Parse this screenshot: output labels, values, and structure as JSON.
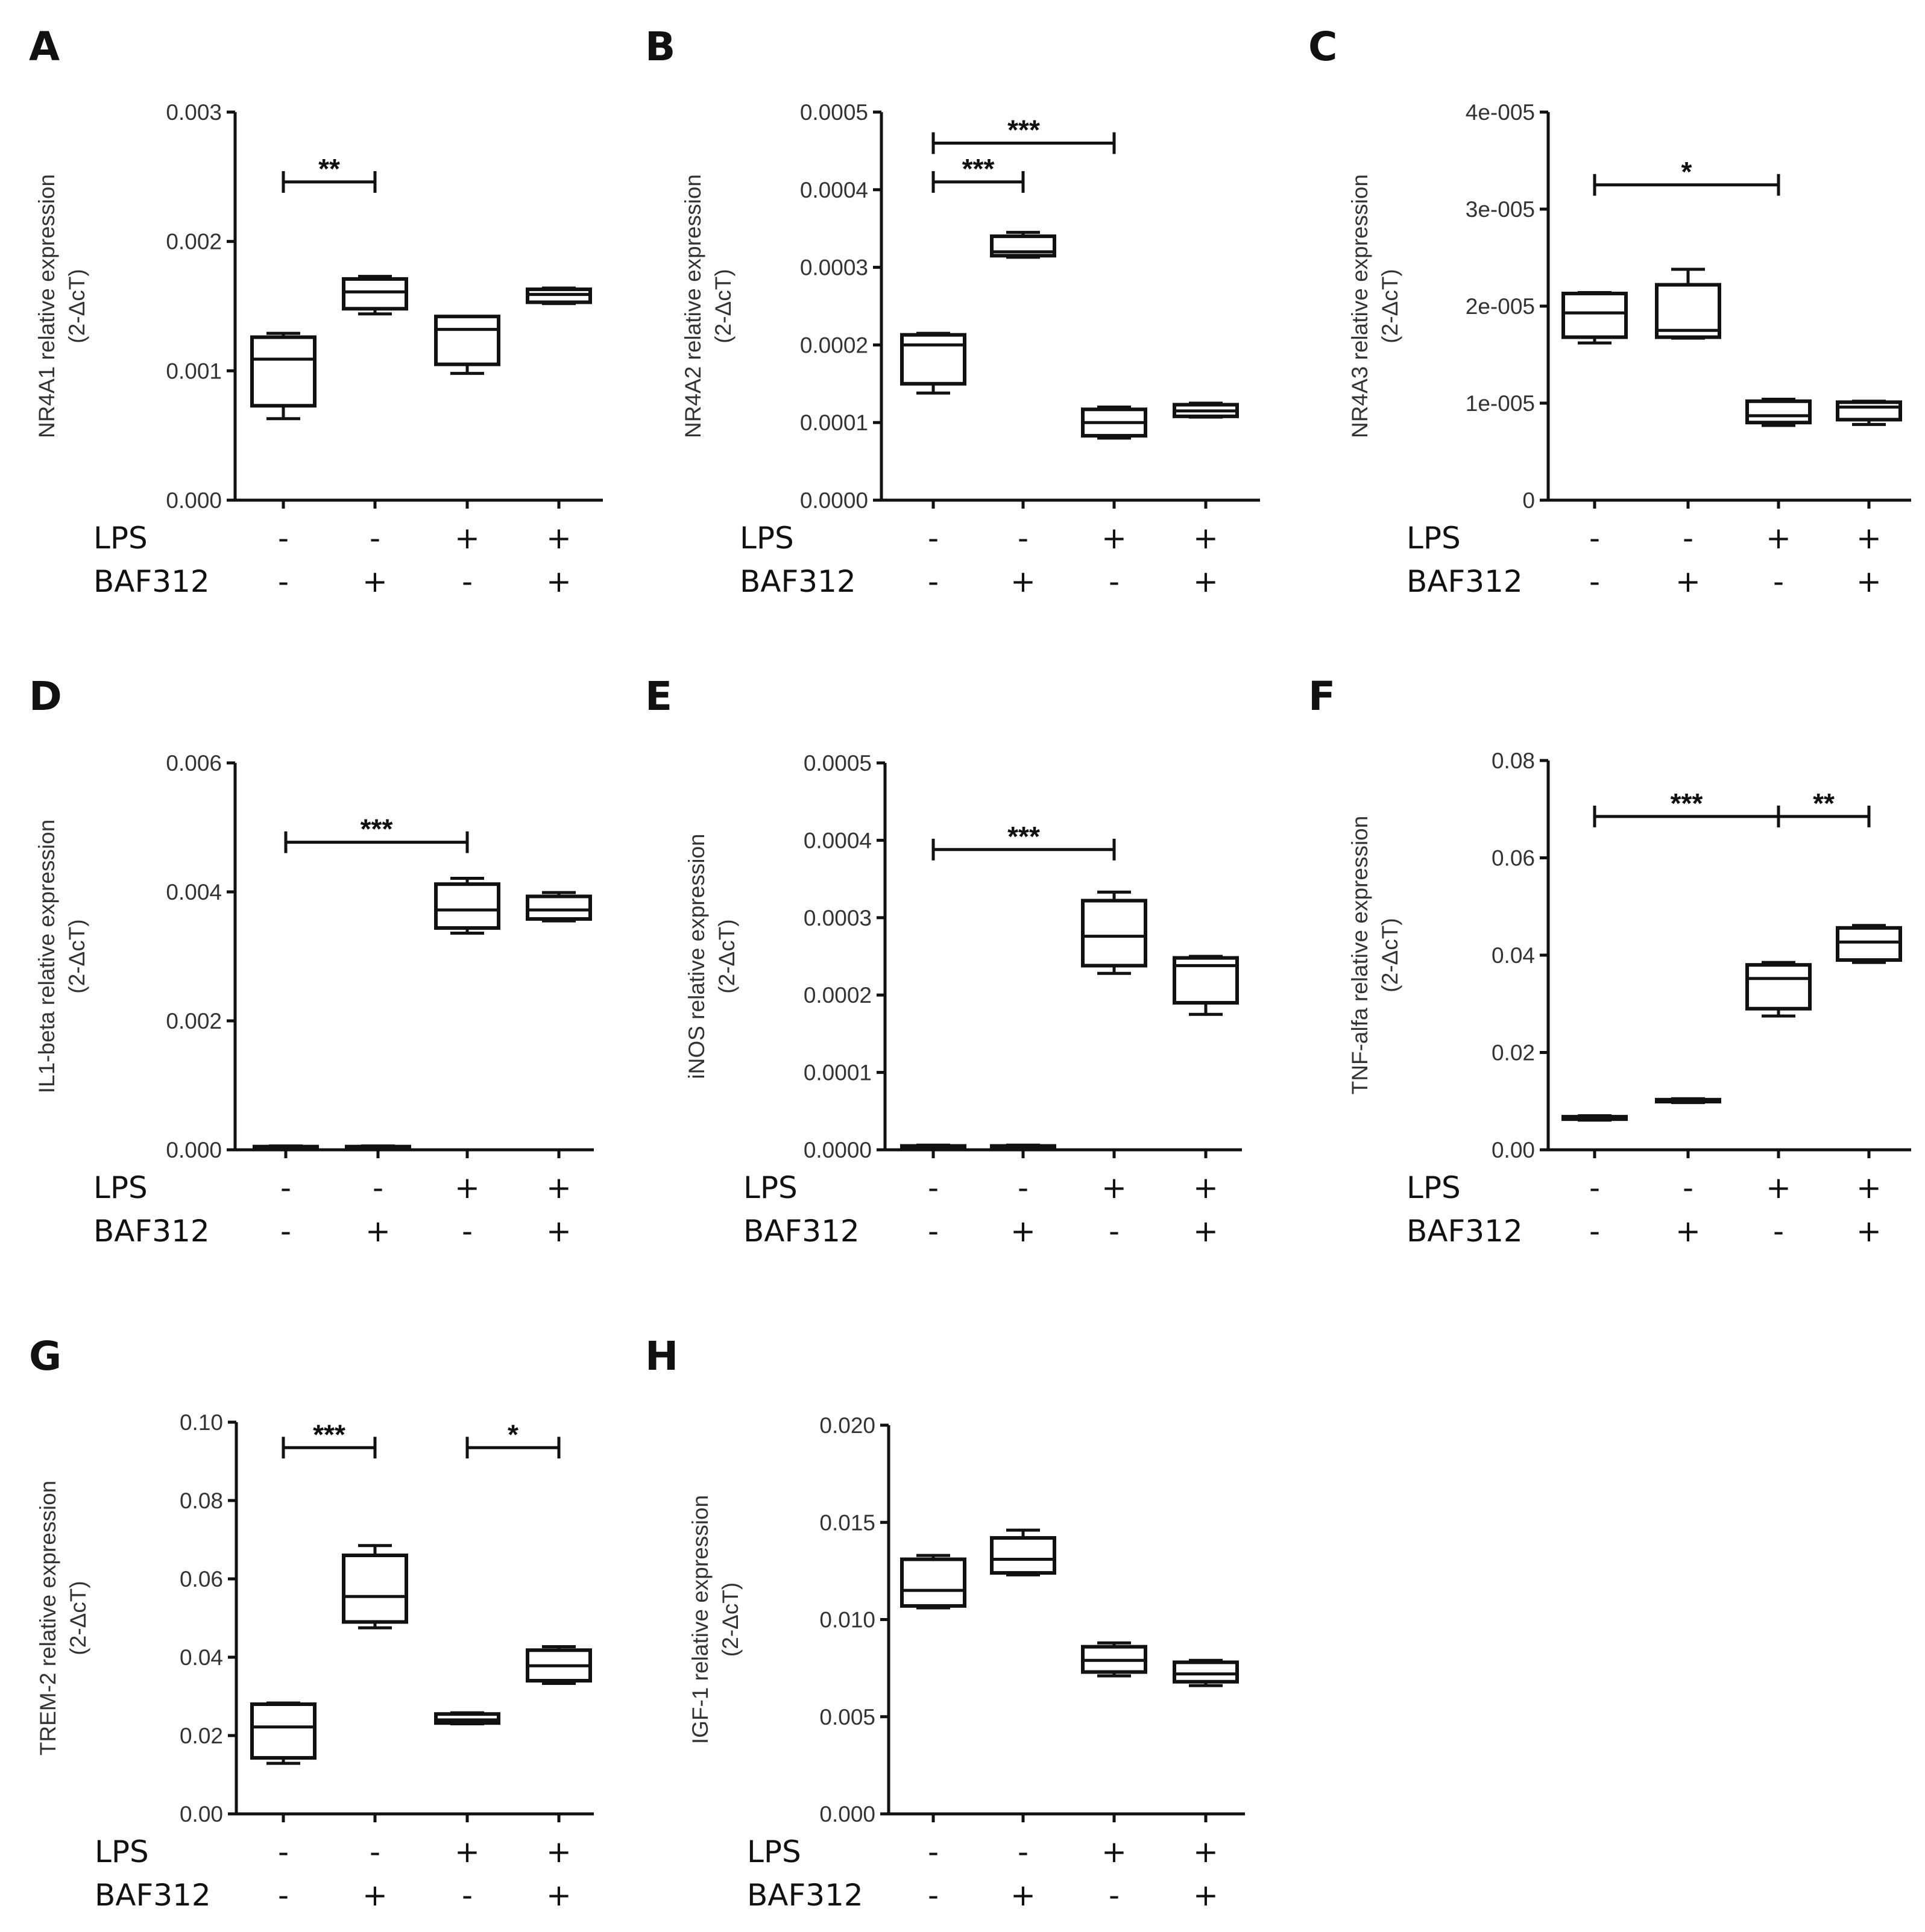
{
  "figure": {
    "chart_data": [
      {
        "panel": "A",
        "type": "box",
        "ylabel": "NR4A1 relative expression",
        "ylabel_unit": "(2-ΔcT)",
        "ylim": [
          0,
          0.003
        ],
        "yticks": [
          {
            "v": 0,
            "t": "0.000"
          },
          {
            "v": 0.001,
            "t": "0.001"
          },
          {
            "v": 0.002,
            "t": "0.002"
          },
          {
            "v": 0.003,
            "t": "0.003"
          }
        ],
        "conditions": {
          "row1_label": "LPS",
          "row2_label": "BAF312",
          "row1": [
            "-",
            "-",
            "+",
            "+"
          ],
          "row2": [
            "-",
            "+",
            "-",
            "+"
          ]
        },
        "boxes": [
          {
            "min": 0.00063,
            "q1": 0.00073,
            "median": 0.00109,
            "q3": 0.00126,
            "max": 0.00129
          },
          {
            "min": 0.00144,
            "q1": 0.00148,
            "median": 0.00161,
            "q3": 0.00171,
            "max": 0.00173
          },
          {
            "min": 0.00098,
            "q1": 0.00105,
            "median": 0.00132,
            "q3": 0.00142,
            "max": 0.00142
          },
          {
            "min": 0.00152,
            "q1": 0.00153,
            "median": 0.00159,
            "q3": 0.00163,
            "max": 0.00164
          }
        ],
        "significance": [
          {
            "from": 0,
            "to": 1,
            "y": 0.00246,
            "label": "**"
          }
        ]
      },
      {
        "panel": "B",
        "type": "box",
        "ylabel": "NR4A2 relative expression",
        "ylabel_unit": "(2-ΔcT)",
        "ylim": [
          0,
          0.0005
        ],
        "yticks": [
          {
            "v": 0,
            "t": "0.0000"
          },
          {
            "v": 0.0001,
            "t": "0.0001"
          },
          {
            "v": 0.0002,
            "t": "0.0002"
          },
          {
            "v": 0.0003,
            "t": "0.0003"
          },
          {
            "v": 0.0004,
            "t": "0.0004"
          },
          {
            "v": 0.0005,
            "t": "0.0005"
          }
        ],
        "conditions": {
          "row1_label": "LPS",
          "row2_label": "BAF312",
          "row1": [
            "-",
            "-",
            "+",
            "+"
          ],
          "row2": [
            "-",
            "+",
            "-",
            "+"
          ]
        },
        "boxes": [
          {
            "min": 0.000138,
            "q1": 0.00015,
            "median": 0.0002,
            "q3": 0.000213,
            "max": 0.000215
          },
          {
            "min": 0.000313,
            "q1": 0.000315,
            "median": 0.00032,
            "q3": 0.00034,
            "max": 0.000345
          },
          {
            "min": 8e-05,
            "q1": 8.3e-05,
            "median": 0.0001,
            "q3": 0.000117,
            "max": 0.00012
          },
          {
            "min": 0.000107,
            "q1": 0.000108,
            "median": 0.000115,
            "q3": 0.000123,
            "max": 0.000125
          }
        ],
        "significance": [
          {
            "from": 0,
            "to": 1,
            "y": 0.00041,
            "label": "***"
          },
          {
            "from": 0,
            "to": 2,
            "y": 0.00046,
            "label": "***"
          }
        ]
      },
      {
        "panel": "C",
        "type": "box",
        "ylabel": "NR4A3 relative expression",
        "ylabel_unit": "(2-ΔcT)",
        "ylim": [
          0,
          4e-05
        ],
        "yticks": [
          {
            "v": 0,
            "t": "0"
          },
          {
            "v": 1e-05,
            "t": "1e-005"
          },
          {
            "v": 2e-05,
            "t": "2e-005"
          },
          {
            "v": 3e-05,
            "t": "3e-005"
          },
          {
            "v": 4e-05,
            "t": "4e-005"
          }
        ],
        "conditions": {
          "row1_label": "LPS",
          "row2_label": "BAF312",
          "row1": [
            "-",
            "-",
            "+",
            "+"
          ],
          "row2": [
            "-",
            "+",
            "-",
            "+"
          ]
        },
        "boxes": [
          {
            "min": 1.62e-05,
            "q1": 1.68e-05,
            "median": 1.93e-05,
            "q3": 2.13e-05,
            "max": 2.14e-05
          },
          {
            "min": 1.67e-05,
            "q1": 1.68e-05,
            "median": 1.75e-05,
            "q3": 2.22e-05,
            "max": 2.38e-05
          },
          {
            "min": 7.7e-06,
            "q1": 8e-06,
            "median": 8.7e-06,
            "q3": 1.02e-05,
            "max": 1.04e-05
          },
          {
            "min": 7.8e-06,
            "q1": 8.3e-06,
            "median": 9.6e-06,
            "q3": 1.01e-05,
            "max": 1.02e-05
          }
        ],
        "significance": [
          {
            "from": 0,
            "to": 2,
            "y": 3.25e-05,
            "label": "*"
          }
        ]
      },
      {
        "panel": "D",
        "type": "box",
        "ylabel": "IL1-beta relative expression",
        "ylabel_unit": "(2-ΔcT)",
        "ylim": [
          0,
          0.006
        ],
        "yticks": [
          {
            "v": 0,
            "t": "0.000"
          },
          {
            "v": 0.002,
            "t": "0.002"
          },
          {
            "v": 0.004,
            "t": "0.004"
          },
          {
            "v": 0.006,
            "t": "0.006"
          }
        ],
        "conditions": {
          "row1_label": "LPS",
          "row2_label": "BAF312",
          "row1": [
            "-",
            "-",
            "+",
            "+"
          ],
          "row2": [
            "-",
            "+",
            "-",
            "+"
          ]
        },
        "boxes": [
          {
            "min": 2e-05,
            "q1": 3e-05,
            "median": 4e-05,
            "q3": 5e-05,
            "max": 6e-05
          },
          {
            "min": 2e-05,
            "q1": 3e-05,
            "median": 4e-05,
            "q3": 5e-05,
            "max": 6e-05
          },
          {
            "min": 0.00336,
            "q1": 0.00344,
            "median": 0.00372,
            "q3": 0.00412,
            "max": 0.00421
          },
          {
            "min": 0.00355,
            "q1": 0.00358,
            "median": 0.00372,
            "q3": 0.00393,
            "max": 0.00399
          }
        ],
        "significance": [
          {
            "from": 0,
            "to": 2,
            "y": 0.00477,
            "label": "***"
          }
        ]
      },
      {
        "panel": "E",
        "type": "box",
        "ylabel": "iNOS relative expression",
        "ylabel_unit": "(2-ΔcT)",
        "ylim": [
          0,
          0.0005
        ],
        "yticks": [
          {
            "v": 0,
            "t": "0.0000"
          },
          {
            "v": 0.0001,
            "t": "0.0001"
          },
          {
            "v": 0.0002,
            "t": "0.0002"
          },
          {
            "v": 0.0003,
            "t": "0.0003"
          },
          {
            "v": 0.0004,
            "t": "0.0004"
          },
          {
            "v": 0.0005,
            "t": "0.0005"
          }
        ],
        "conditions": {
          "row1_label": "LPS",
          "row2_label": "BAF312",
          "row1": [
            "-",
            "-",
            "+",
            "+"
          ],
          "row2": [
            "-",
            "+",
            "-",
            "+"
          ]
        },
        "boxes": [
          {
            "min": 2e-06,
            "q1": 3e-06,
            "median": 4e-06,
            "q3": 5e-06,
            "max": 6e-06
          },
          {
            "min": 2e-06,
            "q1": 3e-06,
            "median": 4e-06,
            "q3": 5e-06,
            "max": 6e-06
          },
          {
            "min": 0.000228,
            "q1": 0.000238,
            "median": 0.000276,
            "q3": 0.000322,
            "max": 0.000333
          },
          {
            "min": 0.000175,
            "q1": 0.00019,
            "median": 0.000238,
            "q3": 0.000248,
            "max": 0.00025
          }
        ],
        "significance": [
          {
            "from": 0,
            "to": 2,
            "y": 0.000388,
            "label": "***"
          }
        ]
      },
      {
        "panel": "F",
        "type": "box",
        "ylabel": "TNF-alfa relative expression",
        "ylabel_unit": "(2-ΔcT)",
        "ylim": [
          0,
          0.08
        ],
        "yticks": [
          {
            "v": 0,
            "t": "0.00"
          },
          {
            "v": 0.02,
            "t": "0.02"
          },
          {
            "v": 0.04,
            "t": "0.04"
          },
          {
            "v": 0.06,
            "t": "0.06"
          },
          {
            "v": 0.08,
            "t": "0.08"
          }
        ],
        "conditions": {
          "row1_label": "LPS",
          "row2_label": "BAF312",
          "row1": [
            "-",
            "-",
            "+",
            "+"
          ],
          "row2": [
            "-",
            "+",
            "-",
            "+"
          ]
        },
        "boxes": [
          {
            "min": 0.0061,
            "q1": 0.0063,
            "median": 0.0066,
            "q3": 0.0068,
            "max": 0.007
          },
          {
            "min": 0.0097,
            "q1": 0.0099,
            "median": 0.0101,
            "q3": 0.0103,
            "max": 0.0105
          },
          {
            "min": 0.0275,
            "q1": 0.029,
            "median": 0.0352,
            "q3": 0.038,
            "max": 0.0385
          },
          {
            "min": 0.0385,
            "q1": 0.039,
            "median": 0.0427,
            "q3": 0.0456,
            "max": 0.0461
          }
        ],
        "significance": [
          {
            "from": 0,
            "to": 2,
            "y": 0.0685,
            "label": "***"
          },
          {
            "from": 2,
            "to": 3,
            "y": 0.0685,
            "label": "**"
          }
        ]
      },
      {
        "panel": "G",
        "type": "box",
        "ylabel": "TREM-2 relative expression",
        "ylabel_unit": "(2-ΔcT)",
        "ylim": [
          0,
          0.1
        ],
        "yticks": [
          {
            "v": 0,
            "t": "0.00"
          },
          {
            "v": 0.02,
            "t": "0.02"
          },
          {
            "v": 0.04,
            "t": "0.04"
          },
          {
            "v": 0.06,
            "t": "0.06"
          },
          {
            "v": 0.08,
            "t": "0.08"
          },
          {
            "v": 0.1,
            "t": "0.10"
          }
        ],
        "conditions": {
          "row1_label": "LPS",
          "row2_label": "BAF312",
          "row1": [
            "-",
            "-",
            "+",
            "+"
          ],
          "row2": [
            "-",
            "+",
            "-",
            "+"
          ]
        },
        "boxes": [
          {
            "min": 0.0129,
            "q1": 0.0143,
            "median": 0.0222,
            "q3": 0.028,
            "max": 0.0283
          },
          {
            "min": 0.0475,
            "q1": 0.049,
            "median": 0.0555,
            "q3": 0.066,
            "max": 0.0685
          },
          {
            "min": 0.023,
            "q1": 0.0232,
            "median": 0.024,
            "q3": 0.0255,
            "max": 0.0258
          },
          {
            "min": 0.0333,
            "q1": 0.034,
            "median": 0.0378,
            "q3": 0.0418,
            "max": 0.0427
          }
        ],
        "significance": [
          {
            "from": 0,
            "to": 1,
            "y": 0.0935,
            "label": "***"
          },
          {
            "from": 2,
            "to": 3,
            "y": 0.0935,
            "label": "*"
          }
        ]
      },
      {
        "panel": "H",
        "type": "box",
        "ylabel": "IGF-1 relative expression",
        "ylabel_unit": "(2-ΔcT)",
        "ylim": [
          0,
          0.02
        ],
        "yticks": [
          {
            "v": 0,
            "t": "0.000"
          },
          {
            "v": 0.005,
            "t": "0.005"
          },
          {
            "v": 0.01,
            "t": "0.010"
          },
          {
            "v": 0.015,
            "t": "0.015"
          },
          {
            "v": 0.02,
            "t": "0.020"
          }
        ],
        "conditions": {
          "row1_label": "LPS",
          "row2_label": "BAF312",
          "row1": [
            "-",
            "-",
            "+",
            "+"
          ],
          "row2": [
            "-",
            "+",
            "-",
            "+"
          ]
        },
        "boxes": [
          {
            "min": 0.0106,
            "q1": 0.0107,
            "median": 0.0115,
            "q3": 0.0131,
            "max": 0.0133
          },
          {
            "min": 0.0123,
            "q1": 0.0124,
            "median": 0.0131,
            "q3": 0.0142,
            "max": 0.0146
          },
          {
            "min": 0.0071,
            "q1": 0.0073,
            "median": 0.0079,
            "q3": 0.0086,
            "max": 0.0088
          },
          {
            "min": 0.0066,
            "q1": 0.0068,
            "median": 0.0072,
            "q3": 0.0078,
            "max": 0.0079
          }
        ],
        "significance": []
      }
    ]
  }
}
